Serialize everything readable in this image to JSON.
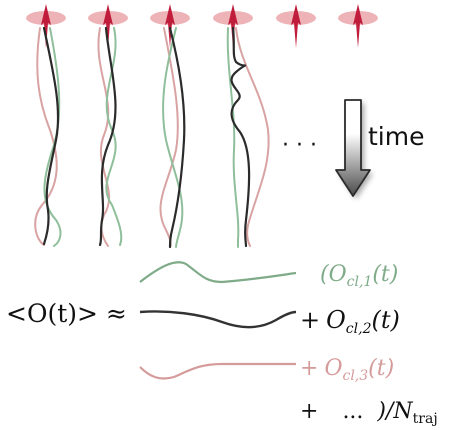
{
  "colors": {
    "spin_disc": "#eeb3b6",
    "spin_arrow": "#c01d3c",
    "traj_black": "#2b2b2b",
    "traj_green": "#8fbf9a",
    "traj_pink": "#d8a3a2",
    "eq_black": "#111111"
  },
  "top": {
    "ellipsis": "· · ·",
    "time_label": "time"
  },
  "equation": {
    "lhs": "<O(t)> ≈",
    "term1": {
      "open": "(O",
      "sub": "cl,1",
      "close": "(t)"
    },
    "term2": {
      "plus": "+",
      "sym": "O",
      "sub": "cl,2",
      "close": "(t)"
    },
    "term3": {
      "plus": "+",
      "sym": "O",
      "sub": "cl,3",
      "close": "(t)"
    },
    "term4": {
      "plus": "+",
      "dots": "...",
      "close": ")/N",
      "sub": "traj"
    }
  }
}
